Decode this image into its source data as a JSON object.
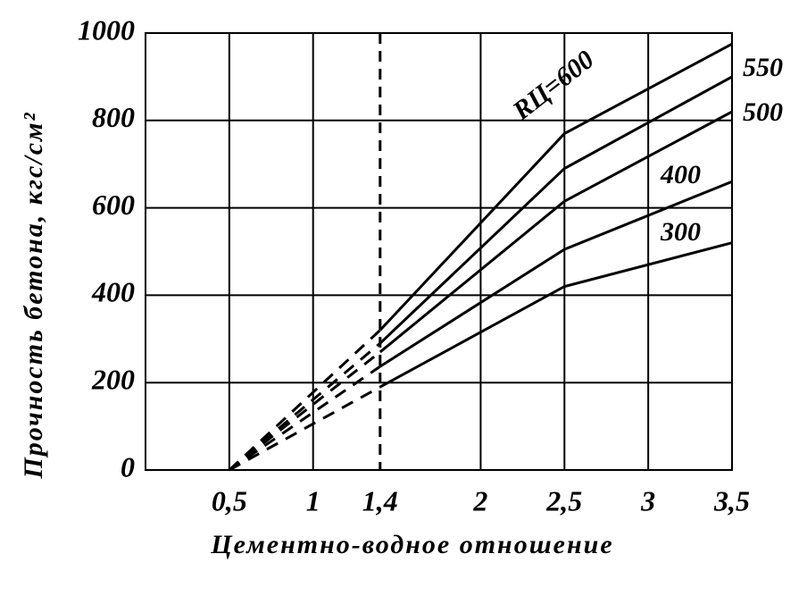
{
  "chart_data": {
    "type": "line",
    "xlabel": "Цементно-водное отношение",
    "ylabel": "Прочность бетона, кгс/см²",
    "x": [
      0.5,
      1.4,
      2.5,
      3.5
    ],
    "series": [
      {
        "name": "300",
        "color": "#000000",
        "values": [
          0,
          190,
          420,
          520
        ]
      },
      {
        "name": "400",
        "color": "#000000",
        "values": [
          0,
          237,
          505,
          660
        ]
      },
      {
        "name": "500",
        "color": "#000000",
        "values": [
          0,
          270,
          615,
          820
        ]
      },
      {
        "name": "550",
        "color": "#000000",
        "values": [
          0,
          290,
          690,
          900
        ]
      },
      {
        "name": "RЦ=600",
        "color": "#000000",
        "values": [
          0,
          320,
          770,
          975
        ]
      }
    ],
    "dashed_below_x": 1.4,
    "xlim": [
      0,
      3.5
    ],
    "ylim": [
      0,
      1000
    ],
    "xticks": [
      {
        "value": 0.5,
        "label": "0,5"
      },
      1,
      {
        "value": 1.4,
        "label": "1,4"
      },
      2,
      {
        "value": 2.5,
        "label": "2,5"
      },
      3,
      {
        "value": 3.5,
        "label": "3,5"
      }
    ],
    "yticks": [
      0,
      200,
      400,
      600,
      800,
      1000
    ],
    "grid": true
  }
}
